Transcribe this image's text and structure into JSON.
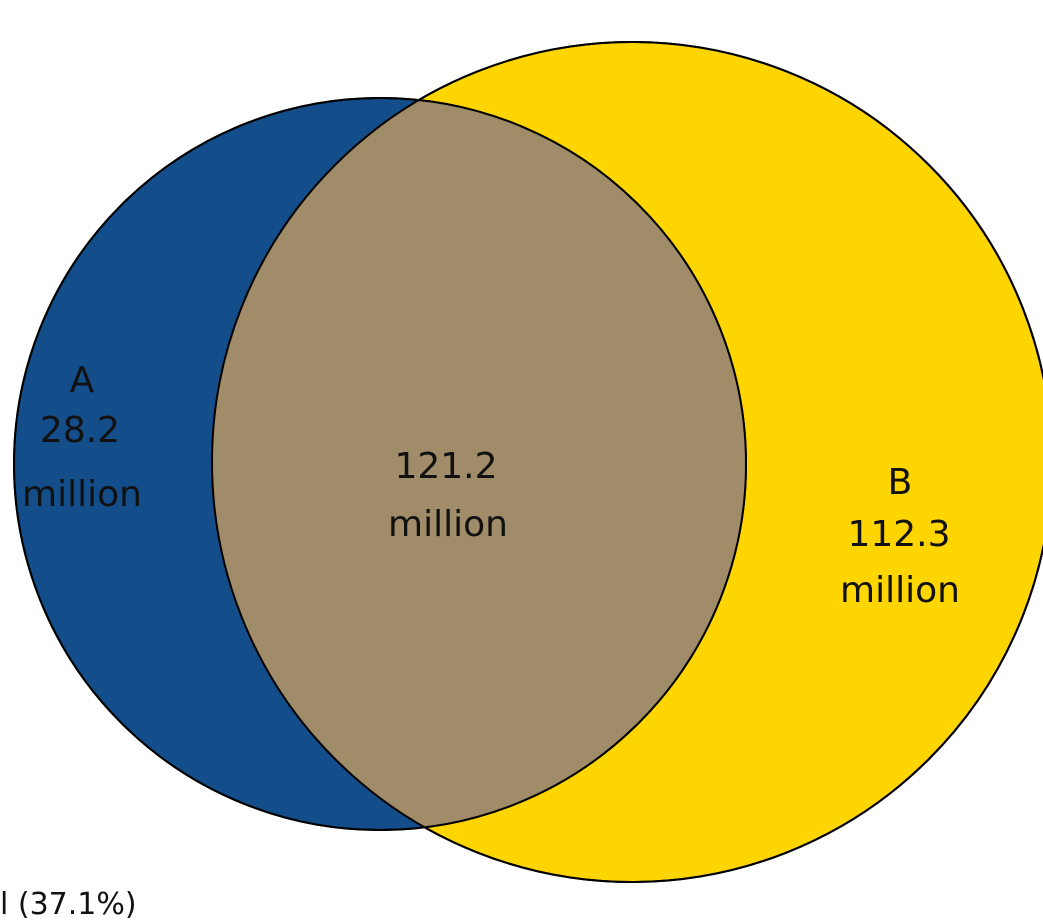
{
  "venn": {
    "set_a": {
      "name": "A",
      "value": "28.2",
      "unit": "million",
      "color": "#134d8a"
    },
    "set_b": {
      "name": "B",
      "value": "112.3",
      "unit": "million",
      "color": "#ffd500"
    },
    "overlap": {
      "value": "121.2",
      "unit": "million",
      "color": "#a08c68"
    },
    "outline_color": "#000000",
    "footnote": "l (37.1%)"
  }
}
